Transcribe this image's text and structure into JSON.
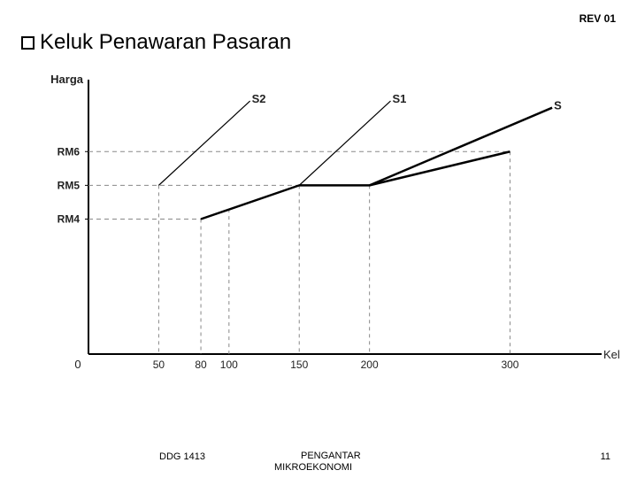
{
  "rev": "REV 01",
  "title": "Keluk Penawaran Pasaran",
  "chart": {
    "type": "line",
    "y_axis_label": "Harga",
    "x_axis_label": "Keluaran",
    "origin_label": "0",
    "y_ticks": [
      {
        "label": "RM6",
        "value": 6
      },
      {
        "label": "RM5",
        "value": 5
      },
      {
        "label": "RM4",
        "value": 4
      }
    ],
    "x_ticks": [
      {
        "label": "50",
        "value": 50
      },
      {
        "label": "80",
        "value": 80
      },
      {
        "label": "100",
        "value": 100
      },
      {
        "label": "150",
        "value": 150
      },
      {
        "label": "200",
        "value": 200
      },
      {
        "label": "300",
        "value": 300
      }
    ],
    "curves": [
      {
        "name": "S2",
        "label": "S₂",
        "kink_x": 50,
        "kink_y": 5,
        "end_x": 115,
        "end_y": 7.5,
        "line_width": 1.2
      },
      {
        "name": "S1",
        "label": "S₁",
        "kink_x": 150,
        "kink_y": 5,
        "end_x": 215,
        "end_y": 7.5,
        "line_width": 1.2
      },
      {
        "name": "S",
        "label": "S",
        "kink_x": 200,
        "kink_y": 5,
        "end_x": 330,
        "end_y": 7.3,
        "line_width": 2.5
      }
    ],
    "main_supply": {
      "points_x": [
        80,
        150,
        200,
        300
      ],
      "points_y": [
        4,
        5,
        5,
        6
      ],
      "line_width": 2.5
    },
    "xlim": [
      0,
      340
    ],
    "ylim": [
      0,
      8
    ],
    "axis_color": "#000000",
    "grid_color": "#888888",
    "text_color": "#222222",
    "background": "#ffffff"
  },
  "footer": {
    "code": "DDG 1413",
    "text1": "PENGANTAR",
    "text2": "MIKROEKONOMI",
    "page": "11"
  }
}
